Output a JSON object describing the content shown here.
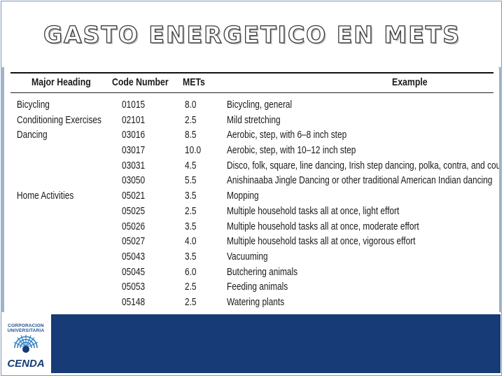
{
  "slide": {
    "title": "GASTO ENERGETICO EN METS"
  },
  "table": {
    "headers": {
      "heading": "Major Heading",
      "code": "Code Number",
      "mets": "METs",
      "example": "Example"
    },
    "rows": [
      {
        "heading": "Bicycling",
        "code": "01015",
        "mets": "8.0",
        "example": "Bicycling, general"
      },
      {
        "heading": "Conditioning Exercises",
        "code": "02101",
        "mets": "2.5",
        "example": "Mild stretching"
      },
      {
        "heading": "Dancing",
        "code": "03016",
        "mets": "8.5",
        "example": "Aerobic, step, with 6–8 inch step"
      },
      {
        "heading": "",
        "code": "03017",
        "mets": "10.0",
        "example": "Aerobic, step, with 10–12 inch step"
      },
      {
        "heading": "",
        "code": "03031",
        "mets": "4.5",
        "example": "Disco, folk, square, line dancing, Irish step dancing, polka, contra, and country dancing"
      },
      {
        "heading": "",
        "code": "03050",
        "mets": "5.5",
        "example": "Anishinaaba Jingle Dancing or other traditional American Indian dancing"
      },
      {
        "heading": "Home Activities",
        "code": "05021",
        "mets": "3.5",
        "example": "Mopping"
      },
      {
        "heading": "",
        "code": "05025",
        "mets": "2.5",
        "example": "Multiple household tasks all at once, light effort"
      },
      {
        "heading": "",
        "code": "05026",
        "mets": "3.5",
        "example": "Multiple household tasks all at once, moderate effort"
      },
      {
        "heading": "",
        "code": "05027",
        "mets": "4.0",
        "example": "Multiple household tasks all at once, vigorous effort"
      },
      {
        "heading": "",
        "code": "05043",
        "mets": "3.5",
        "example": "Vacuuming"
      },
      {
        "heading": "",
        "code": "05045",
        "mets": "6.0",
        "example": "Butchering animals"
      },
      {
        "heading": "",
        "code": "05053",
        "mets": "2.5",
        "example": "Feeding animals"
      },
      {
        "heading": "",
        "code": "05148",
        "mets": "2.5",
        "example": "Watering plants"
      }
    ]
  },
  "footer": {
    "logo": {
      "line1": "CORPORACION",
      "line2": "UNIVERSITARIA",
      "name": "CENDA",
      "icon": "cenda-logo-icon"
    },
    "colors": {
      "bar": "#163b77",
      "frame": "#9eb3cc"
    }
  }
}
